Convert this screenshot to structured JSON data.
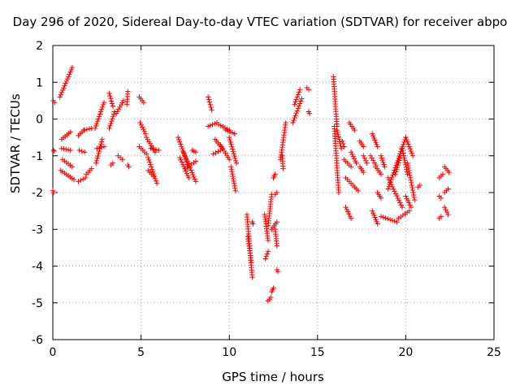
{
  "chart_data": {
    "type": "scatter",
    "title": "Day 296 of 2020, Sidereal Day-to-day VTEC variation (SDTVAR) for receiver abpo",
    "xlabel": "GPS time / hours",
    "ylabel": "SDTVAR / TECUs",
    "xlim": [
      0,
      25
    ],
    "ylim": [
      -6,
      2
    ],
    "xticks": [
      0,
      5,
      10,
      15,
      20,
      25
    ],
    "yticks": [
      -6,
      -5,
      -4,
      -3,
      -2,
      -1,
      0,
      1,
      2
    ],
    "grid": true,
    "marker": "+",
    "color": "#ff0000",
    "segments": [
      {
        "from": [
          0.0,
          -1.95
        ],
        "to": [
          0.05,
          -2.0
        ]
      },
      {
        "from": [
          0.02,
          0.5
        ],
        "to": [
          0.1,
          0.45
        ]
      },
      {
        "from": [
          0.03,
          -0.85
        ],
        "to": [
          0.08,
          -0.87
        ]
      },
      {
        "from": [
          0.4,
          0.6
        ],
        "to": [
          1.1,
          1.4
        ]
      },
      {
        "from": [
          0.45,
          -1.4
        ],
        "to": [
          1.2,
          -1.65
        ]
      },
      {
        "from": [
          0.5,
          -0.55
        ],
        "to": [
          1.0,
          -0.35
        ]
      },
      {
        "from": [
          0.5,
          -0.8
        ],
        "to": [
          1.0,
          -0.85
        ]
      },
      {
        "from": [
          0.55,
          -1.1
        ],
        "to": [
          1.1,
          -1.3
        ]
      },
      {
        "from": [
          1.45,
          -0.45
        ],
        "to": [
          1.75,
          -0.3
        ]
      },
      {
        "from": [
          1.45,
          -1.7
        ],
        "to": [
          1.85,
          -1.6
        ]
      },
      {
        "from": [
          1.5,
          -0.85
        ],
        "to": [
          1.8,
          -0.9
        ]
      },
      {
        "from": [
          1.8,
          -0.3
        ],
        "to": [
          2.2,
          -0.25
        ]
      },
      {
        "from": [
          1.9,
          -1.5
        ],
        "to": [
          2.2,
          -1.35
        ]
      },
      {
        "from": [
          2.4,
          -0.25
        ],
        "to": [
          2.9,
          0.45
        ]
      },
      {
        "from": [
          2.45,
          -1.2
        ],
        "to": [
          2.8,
          -0.55
        ]
      },
      {
        "from": [
          2.5,
          -0.8
        ],
        "to": [
          2.9,
          -0.75
        ]
      },
      {
        "from": [
          3.2,
          0.7
        ],
        "to": [
          3.4,
          0.35
        ]
      },
      {
        "from": [
          3.2,
          -0.25
        ],
        "to": [
          3.5,
          0.2
        ]
      },
      {
        "from": [
          3.3,
          -1.25
        ],
        "to": [
          3.4,
          -1.2
        ]
      },
      {
        "from": [
          3.6,
          0.15
        ],
        "to": [
          4.0,
          0.5
        ]
      },
      {
        "from": [
          3.7,
          -1.0
        ],
        "to": [
          3.95,
          -1.1
        ]
      },
      {
        "from": [
          4.2,
          0.4
        ],
        "to": [
          4.25,
          0.75
        ]
      },
      {
        "from": [
          4.25,
          -1.25
        ],
        "to": [
          4.3,
          -1.3
        ]
      },
      {
        "from": [
          4.9,
          0.6
        ],
        "to": [
          5.15,
          0.45
        ]
      },
      {
        "from": [
          4.95,
          -0.1
        ],
        "to": [
          5.25,
          -0.4
        ]
      },
      {
        "from": [
          4.9,
          -0.75
        ],
        "to": [
          5.3,
          -0.95
        ]
      },
      {
        "from": [
          5.3,
          -0.5
        ],
        "to": [
          5.8,
          -0.9
        ]
      },
      {
        "from": [
          5.4,
          -1.05
        ],
        "to": [
          5.9,
          -1.75
        ]
      },
      {
        "from": [
          5.55,
          -0.8
        ],
        "to": [
          6.0,
          -0.85
        ]
      },
      {
        "from": [
          5.4,
          -1.4
        ],
        "to": [
          5.7,
          -1.55
        ]
      },
      {
        "from": [
          7.1,
          -0.5
        ],
        "to": [
          7.7,
          -1.3
        ]
      },
      {
        "from": [
          7.2,
          -1.05
        ],
        "to": [
          7.7,
          -1.6
        ]
      },
      {
        "from": [
          7.4,
          -0.9
        ],
        "to": [
          8.1,
          -1.7
        ]
      },
      {
        "from": [
          7.5,
          -1.35
        ],
        "to": [
          8.1,
          -1.15
        ]
      },
      {
        "from": [
          7.9,
          -0.85
        ],
        "to": [
          8.1,
          -0.9
        ]
      },
      {
        "from": [
          8.8,
          0.6
        ],
        "to": [
          9.0,
          0.25
        ]
      },
      {
        "from": [
          8.8,
          -0.2
        ],
        "to": [
          9.3,
          -0.1
        ]
      },
      {
        "from": [
          9.2,
          -0.55
        ],
        "to": [
          9.6,
          -0.8
        ]
      },
      {
        "from": [
          9.1,
          -0.95
        ],
        "to": [
          9.5,
          -0.85
        ]
      },
      {
        "from": [
          9.4,
          -0.15
        ],
        "to": [
          10.0,
          -0.3
        ]
      },
      {
        "from": [
          9.5,
          -0.7
        ],
        "to": [
          10.0,
          -1.1
        ]
      },
      {
        "from": [
          9.8,
          -0.3
        ],
        "to": [
          10.3,
          -0.4
        ]
      },
      {
        "from": [
          10.0,
          -0.5
        ],
        "to": [
          10.4,
          -1.2
        ]
      },
      {
        "from": [
          10.1,
          -1.3
        ],
        "to": [
          10.35,
          -1.95
        ]
      },
      {
        "from": [
          11.0,
          -2.6
        ],
        "to": [
          11.3,
          -4.3
        ]
      },
      {
        "from": [
          11.05,
          -3.2
        ],
        "to": [
          11.25,
          -3.9
        ]
      },
      {
        "from": [
          11.3,
          -2.8
        ],
        "to": [
          11.35,
          -2.85
        ]
      },
      {
        "from": [
          12.0,
          -2.6
        ],
        "to": [
          12.2,
          -3.3
        ]
      },
      {
        "from": [
          12.05,
          -3.8
        ],
        "to": [
          12.2,
          -3.6
        ]
      },
      {
        "from": [
          12.2,
          -2.9
        ],
        "to": [
          12.4,
          -2.05
        ]
      },
      {
        "from": [
          12.2,
          -4.95
        ],
        "to": [
          12.35,
          -4.85
        ]
      },
      {
        "from": [
          12.4,
          -4.7
        ],
        "to": [
          12.5,
          -4.6
        ]
      },
      {
        "from": [
          12.4,
          -3.0
        ],
        "to": [
          12.7,
          -2.8
        ]
      },
      {
        "from": [
          12.5,
          -1.6
        ],
        "to": [
          12.6,
          -1.5
        ]
      },
      {
        "from": [
          12.6,
          -3.0
        ],
        "to": [
          12.7,
          -3.45
        ]
      },
      {
        "from": [
          12.6,
          -2.05
        ],
        "to": [
          12.7,
          -2.0
        ]
      },
      {
        "from": [
          12.7,
          -4.1
        ],
        "to": [
          12.75,
          -4.15
        ]
      },
      {
        "from": [
          12.9,
          -1.1
        ],
        "to": [
          13.2,
          -0.1
        ]
      },
      {
        "from": [
          13.0,
          -1.0
        ],
        "to": [
          13.05,
          -1.35
        ]
      },
      {
        "from": [
          13.7,
          0.4
        ],
        "to": [
          14.0,
          0.8
        ]
      },
      {
        "from": [
          13.6,
          -0.1
        ],
        "to": [
          14.1,
          0.55
        ]
      },
      {
        "from": [
          14.4,
          0.85
        ],
        "to": [
          14.5,
          0.8
        ]
      },
      {
        "from": [
          14.5,
          0.2
        ],
        "to": [
          14.55,
          0.15
        ]
      },
      {
        "from": [
          15.9,
          1.15
        ],
        "to": [
          16.1,
          -0.2
        ]
      },
      {
        "from": [
          15.95,
          -0.2
        ],
        "to": [
          16.2,
          -2.0
        ]
      },
      {
        "from": [
          16.1,
          -0.3
        ],
        "to": [
          16.35,
          -0.8
        ]
      },
      {
        "from": [
          16.4,
          -0.6
        ],
        "to": [
          16.5,
          -0.75
        ]
      },
      {
        "from": [
          16.5,
          -1.1
        ],
        "to": [
          16.9,
          -1.3
        ]
      },
      {
        "from": [
          16.6,
          -2.4
        ],
        "to": [
          16.9,
          -2.7
        ]
      },
      {
        "from": [
          16.8,
          -0.1
        ],
        "to": [
          17.1,
          -0.3
        ]
      },
      {
        "from": [
          16.9,
          -0.9
        ],
        "to": [
          17.2,
          -1.2
        ]
      },
      {
        "from": [
          16.6,
          -1.6
        ],
        "to": [
          17.3,
          -1.95
        ]
      },
      {
        "from": [
          17.4,
          -0.6
        ],
        "to": [
          17.6,
          -0.75
        ]
      },
      {
        "from": [
          17.4,
          -1.3
        ],
        "to": [
          17.6,
          -1.45
        ]
      },
      {
        "from": [
          17.6,
          -1.0
        ],
        "to": [
          17.8,
          -1.2
        ]
      },
      {
        "from": [
          18.0,
          -1.0
        ],
        "to": [
          18.3,
          -1.25
        ]
      },
      {
        "from": [
          18.1,
          -2.5
        ],
        "to": [
          18.4,
          -2.85
        ]
      },
      {
        "from": [
          18.1,
          -0.4
        ],
        "to": [
          18.4,
          -0.75
        ]
      },
      {
        "from": [
          18.3,
          -1.3
        ],
        "to": [
          18.6,
          -1.5
        ]
      },
      {
        "from": [
          18.4,
          -2.0
        ],
        "to": [
          18.6,
          -2.15
        ]
      },
      {
        "from": [
          18.6,
          -1.0
        ],
        "to": [
          18.8,
          -1.3
        ]
      },
      {
        "from": [
          18.6,
          -2.65
        ],
        "to": [
          19.5,
          -2.8
        ]
      },
      {
        "from": [
          19.0,
          -1.9
        ],
        "to": [
          20.0,
          -0.5
        ]
      },
      {
        "from": [
          19.0,
          -1.6
        ],
        "to": [
          19.8,
          -2.4
        ]
      },
      {
        "from": [
          19.4,
          -1.5
        ],
        "to": [
          19.7,
          -1.0
        ]
      },
      {
        "from": [
          19.6,
          -2.7
        ],
        "to": [
          20.2,
          -2.5
        ]
      },
      {
        "from": [
          19.8,
          -0.8
        ],
        "to": [
          20.1,
          -1.5
        ]
      },
      {
        "from": [
          20.0,
          -0.5
        ],
        "to": [
          20.4,
          -1.0
        ]
      },
      {
        "from": [
          20.1,
          -1.2
        ],
        "to": [
          20.5,
          -2.2
        ]
      },
      {
        "from": [
          20.0,
          -2.1
        ],
        "to": [
          20.3,
          -2.4
        ]
      },
      {
        "from": [
          20.7,
          -1.85
        ],
        "to": [
          20.8,
          -1.8
        ]
      },
      {
        "from": [
          21.9,
          -1.6
        ],
        "to": [
          22.1,
          -1.5
        ]
      },
      {
        "from": [
          21.9,
          -2.1
        ],
        "to": [
          22.0,
          -2.15
        ]
      },
      {
        "from": [
          21.9,
          -2.7
        ],
        "to": [
          22.0,
          -2.65
        ]
      },
      {
        "from": [
          22.2,
          -1.3
        ],
        "to": [
          22.45,
          -1.45
        ]
      },
      {
        "from": [
          22.2,
          -2.0
        ],
        "to": [
          22.4,
          -1.9
        ]
      },
      {
        "from": [
          22.2,
          -2.4
        ],
        "to": [
          22.4,
          -2.6
        ]
      }
    ]
  }
}
